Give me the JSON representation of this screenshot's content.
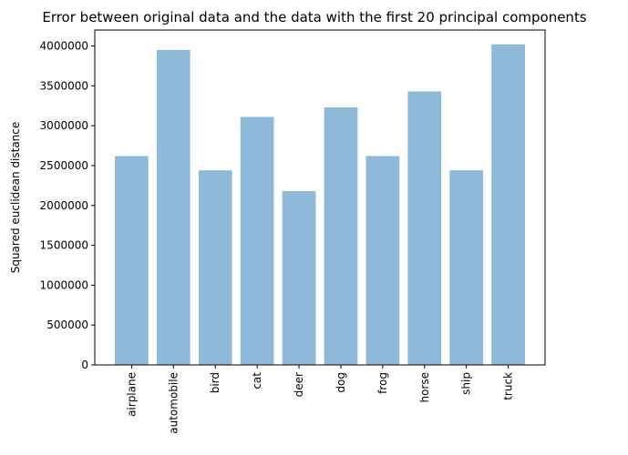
{
  "chart_data": {
    "type": "bar",
    "title": "Error between original data and the data with the first 20 principal components",
    "xlabel": "",
    "ylabel": "Squared euclidean distance",
    "categories": [
      "airplane",
      "automobile",
      "bird",
      "cat",
      "deer",
      "dog",
      "frog",
      "horse",
      "ship",
      "truck"
    ],
    "values": [
      2620000,
      3950000,
      2440000,
      3110000,
      2180000,
      3230000,
      2620000,
      3430000,
      2440000,
      4020000
    ],
    "ylim": [
      0,
      4200000
    ],
    "yticks": [
      0,
      500000,
      1000000,
      1500000,
      2000000,
      2500000,
      3000000,
      3500000,
      4000000
    ],
    "ytick_labels": [
      "0",
      "500000",
      "1000000",
      "1500000",
      "2000000",
      "2500000",
      "3000000",
      "3500000",
      "4000000"
    ],
    "bar_color": "#8fb9d9",
    "grid": false,
    "legend": false
  }
}
